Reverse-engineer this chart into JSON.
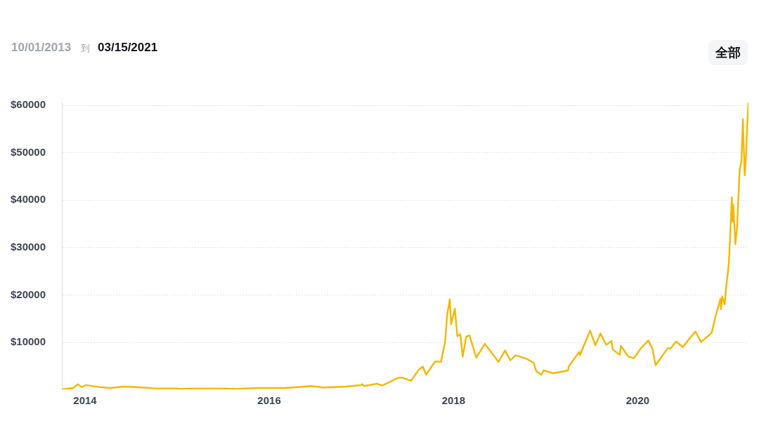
{
  "chart_data": {
    "type": "line",
    "annotations": [
      "10/01/2013",
      "到",
      "03/15/2021",
      "全部"
    ],
    "x": [
      "2013-10-01",
      "2013-11-15",
      "2013-12-04",
      "2013-12-18",
      "2014-01-05",
      "2014-02-25",
      "2014-04-10",
      "2014-06-03",
      "2014-08-18",
      "2014-10-05",
      "2014-12-31",
      "2015-01-14",
      "2015-03-10",
      "2015-06-30",
      "2015-08-24",
      "2015-11-04",
      "2015-12-31",
      "2016-03-01",
      "2016-06-17",
      "2016-08-02",
      "2016-10-31",
      "2016-12-31",
      "2017-01-04",
      "2017-01-11",
      "2017-03-03",
      "2017-03-24",
      "2017-05-25",
      "2017-06-12",
      "2017-07-16",
      "2017-08-17",
      "2017-09-01",
      "2017-09-14",
      "2017-10-20",
      "2017-11-12",
      "2017-11-28",
      "2017-12-07",
      "2017-12-17",
      "2017-12-22",
      "2018-01-06",
      "2018-01-16",
      "2018-01-28",
      "2018-02-06",
      "2018-02-20",
      "2018-03-05",
      "2018-04-01",
      "2018-05-05",
      "2018-06-28",
      "2018-07-24",
      "2018-08-14",
      "2018-09-04",
      "2018-10-15",
      "2018-11-14",
      "2018-11-25",
      "2018-12-15",
      "2018-12-24",
      "2019-01-31",
      "2019-03-31",
      "2019-04-02",
      "2019-05-14",
      "2019-05-17",
      "2019-06-26",
      "2019-07-17",
      "2019-08-06",
      "2019-08-29",
      "2019-09-19",
      "2019-09-24",
      "2019-10-22",
      "2019-10-26",
      "2019-11-25",
      "2019-12-17",
      "2020-01-14",
      "2020-02-12",
      "2020-02-28",
      "2020-03-12",
      "2020-04-29",
      "2020-05-10",
      "2020-06-01",
      "2020-06-28",
      "2020-07-27",
      "2020-08-17",
      "2020-09-08",
      "2020-10-20",
      "2020-11-05",
      "2020-11-24",
      "2020-11-26",
      "2020-12-01",
      "2020-12-11",
      "2020-12-16",
      "2020-12-27",
      "2021-01-02",
      "2021-01-08",
      "2021-01-11",
      "2021-01-14",
      "2021-01-22",
      "2021-01-29",
      "2021-02-08",
      "2021-02-15",
      "2021-02-21",
      "2021-02-28",
      "2021-03-05",
      "2021-03-10",
      "2021-03-15"
    ],
    "series": [
      {
        "color": "#f5b700",
        "values": [
          100,
          400,
          1200,
          600,
          1000,
          600,
          400,
          700,
          500,
          300,
          300,
          200,
          300,
          300,
          200,
          400,
          400,
          400,
          800,
          500,
          700,
          1000,
          1200,
          800,
          1300,
          900,
          2500,
          2600,
          1900,
          4300,
          4900,
          3200,
          6000,
          5900,
          10000,
          16000,
          19100,
          13800,
          17100,
          11300,
          11700,
          7000,
          11200,
          11500,
          6800,
          9700,
          5900,
          8300,
          6200,
          7300,
          6600,
          5700,
          3900,
          3200,
          4100,
          3500,
          4100,
          4900,
          8000,
          7300,
          12500,
          9400,
          11900,
          9500,
          10300,
          8500,
          7400,
          9300,
          7000,
          6700,
          8800,
          10400,
          8700,
          5200,
          8800,
          8700,
          10200,
          9000,
          11000,
          12300,
          10100,
          12000,
          15600,
          19200,
          17000,
          19700,
          18000,
          21300,
          26500,
          33000,
          40600,
          35500,
          39000,
          30700,
          34300,
          46400,
          48000,
          57100,
          45200,
          48800,
          55800,
          60600
        ]
      }
    ],
    "xlim": [
      "2013-10-01",
      "2021-03-15"
    ],
    "xticks": [
      "2014",
      "2016",
      "2018",
      "2020"
    ],
    "ylim": [
      100,
      60600
    ],
    "yticks": [
      {
        "value": 10000,
        "label": "$10000"
      },
      {
        "value": 20000,
        "label": "$20000"
      },
      {
        "value": 30000,
        "label": "$30000"
      },
      {
        "value": 40000,
        "label": "$40000"
      },
      {
        "value": 50000,
        "label": "$50000"
      },
      {
        "value": 60000,
        "label": "$60000"
      }
    ],
    "grid": "y"
  }
}
